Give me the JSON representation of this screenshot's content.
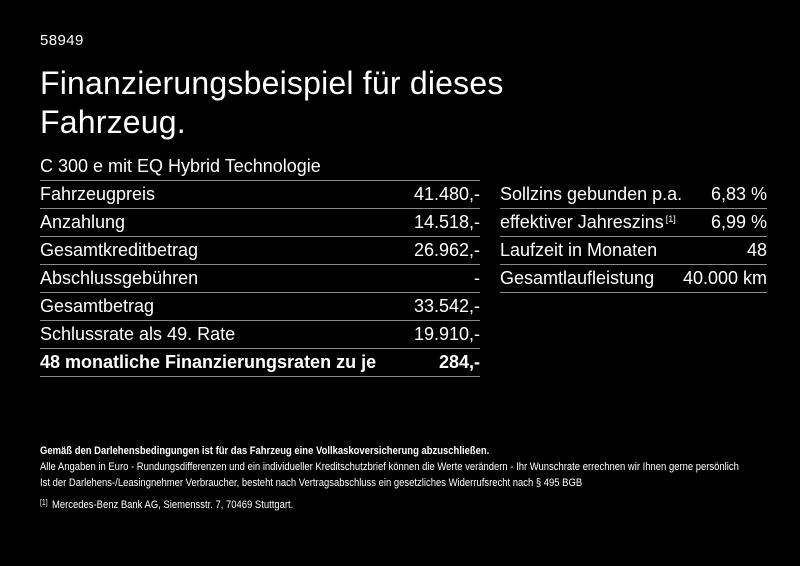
{
  "header": {
    "ref_number": "58949",
    "title_line1": "Finanzierungsbeispiel für dieses",
    "title_line2": "Fahrzeug.",
    "subtitle": "C 300 e mit EQ Hybrid Technologie"
  },
  "left_table": {
    "rows": [
      {
        "label": "Fahrzeugpreis",
        "value": "41.480,-"
      },
      {
        "label": "Anzahlung",
        "value": "14.518,-"
      },
      {
        "label": "Gesamtkreditbetrag",
        "value": "26.962,-"
      },
      {
        "label": "Abschlussgebühren",
        "value": "-"
      },
      {
        "label": "Gesamtbetrag",
        "value": "33.542,-"
      },
      {
        "label": "Schlussrate als 49. Rate",
        "value": "19.910,-"
      }
    ],
    "total_row": {
      "label": "48 monatliche Finanzierungsraten zu je",
      "value": "284,-"
    }
  },
  "right_table": {
    "rows": [
      {
        "label": "Sollzins gebunden p.a.",
        "value": "6,83 %"
      },
      {
        "label": "effektiver Jahreszins",
        "sup": "[1]",
        "value": "6,99 %"
      },
      {
        "label": "Laufzeit in Monaten",
        "value": "48"
      },
      {
        "label": "Gesamtlaufleistung",
        "value": "40.000 km"
      }
    ]
  },
  "fine_print": {
    "bold_line": "Gemäß den Darlehensbedingungen ist für das Fahrzeug eine Vollkaskoversicherung abzuschließen.",
    "line2": "Alle Angaben in Euro - Rundungsdifferenzen und ein individueller Kreditschutzbrief können die Werte verändern - Ihr Wunschrate errechnen wir Ihnen gerne persönlich",
    "line3": "Ist der Darlehens-/Leasingnehmer Verbraucher, besteht nach Vertragsabschluss ein gesetzliches Widerrufsrecht nach § 495 BGB",
    "footnote_marker": "[1]",
    "footnote_text": "Mercedes-Benz Bank AG, Siemensstr. 7, 70469 Stuttgart."
  },
  "colors": {
    "background": "#000000",
    "text": "#ffffff",
    "divider": "#8a8a8a"
  }
}
